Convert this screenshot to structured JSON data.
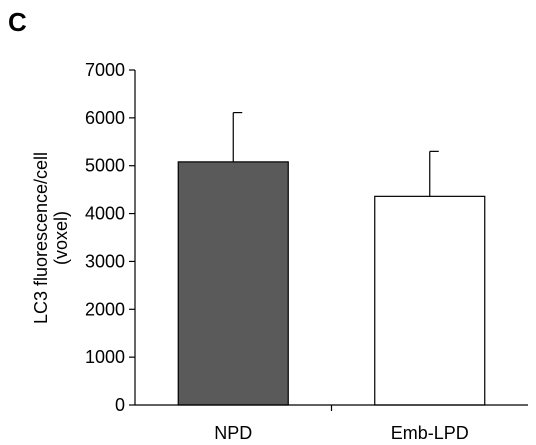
{
  "panel_label": "C",
  "colors": {
    "bar_fill": [
      "#5a5a5a",
      "#ffffff"
    ],
    "stroke": "#000000"
  },
  "chart_data": {
    "type": "bar",
    "categories": [
      "NPD",
      "Emb-LPD"
    ],
    "values": [
      5080,
      4360
    ],
    "error_upper": [
      1030,
      940
    ],
    "ylabel_lines": [
      "LC3 fluorescence/cell",
      "(voxel)"
    ],
    "xlabel": "",
    "ylim": [
      0,
      7000
    ],
    "yticks": [
      0,
      1000,
      2000,
      3000,
      4000,
      5000,
      6000,
      7000
    ],
    "grid": false,
    "legend": "none"
  }
}
